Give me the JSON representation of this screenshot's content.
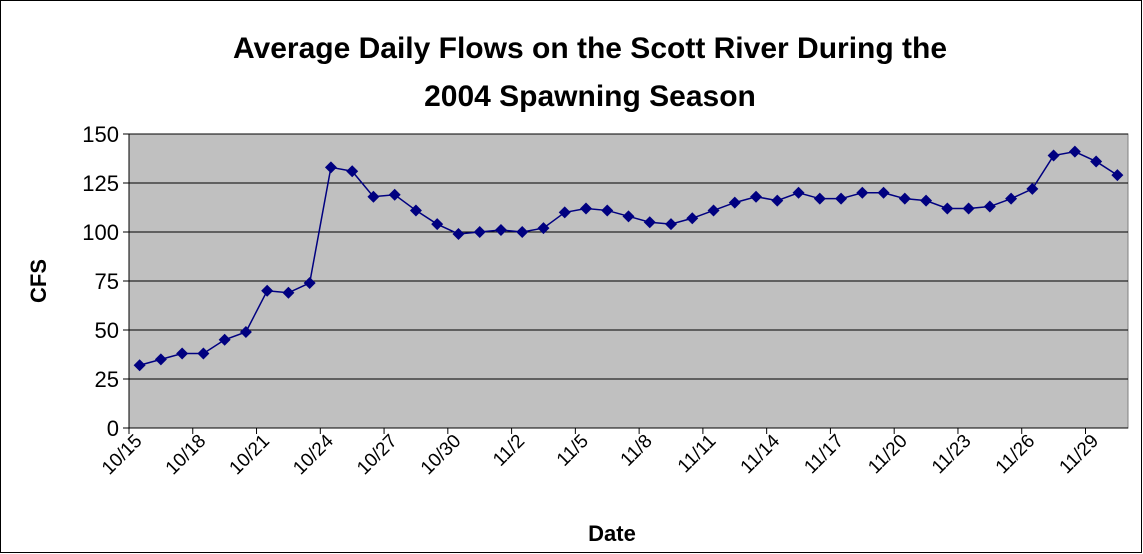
{
  "chart_data": {
    "type": "line",
    "title": [
      "Average Daily Flows on the Scott River During the",
      "2004 Spawning Season"
    ],
    "x_label": "Date",
    "y_label": "CFS",
    "categories": [
      "10/15",
      null,
      null,
      "10/18",
      null,
      null,
      "10/21",
      null,
      null,
      "10/24",
      null,
      null,
      "10/27",
      null,
      null,
      "10/30",
      null,
      null,
      "11/2",
      null,
      null,
      "11/5",
      null,
      null,
      "11/8",
      null,
      null,
      "11/11",
      null,
      null,
      "11/14",
      null,
      null,
      "11/17",
      null,
      null,
      "11/20",
      null,
      null,
      "11/23",
      null,
      null,
      "11/26",
      null,
      null,
      "11/29",
      null
    ],
    "series": [
      {
        "name": "CFS",
        "color": "#000080",
        "values": [
          32,
          35,
          38,
          38,
          45,
          49,
          70,
          69,
          74,
          133,
          131,
          118,
          119,
          111,
          104,
          99,
          100,
          101,
          100,
          102,
          110,
          112,
          111,
          108,
          105,
          104,
          107,
          111,
          115,
          118,
          116,
          120,
          117,
          117,
          120,
          120,
          117,
          116,
          112,
          112,
          113,
          117,
          122,
          139,
          141,
          136,
          129
        ]
      }
    ],
    "ylim": [
      0,
      150
    ],
    "yticks": [
      0,
      25,
      50,
      75,
      100,
      125,
      150
    ],
    "grid": true,
    "plot_background": "#c0c0c0"
  }
}
